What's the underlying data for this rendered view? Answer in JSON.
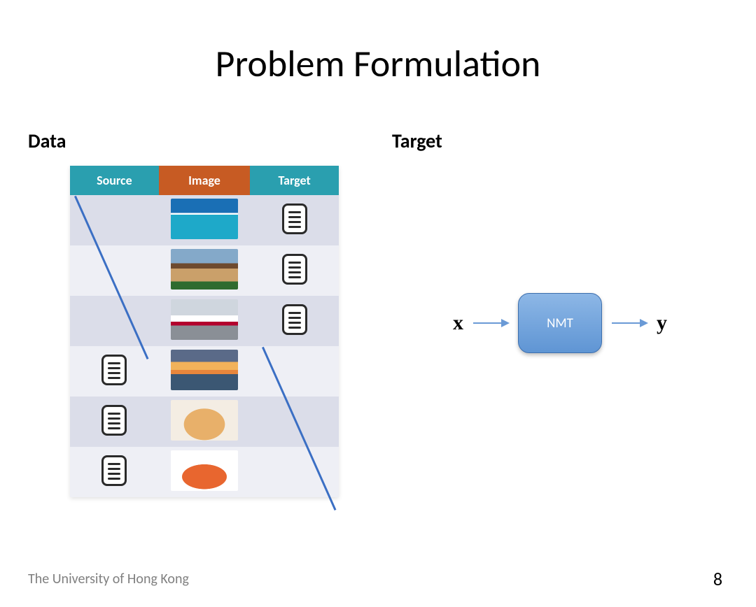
{
  "slide": {
    "title": "Problem Formulation",
    "footer": "The University of Hong Kong",
    "page_number": "8"
  },
  "sections": {
    "data_label": "Data",
    "target_label": "Target"
  },
  "table": {
    "headers": {
      "source": "Source",
      "image": "Image",
      "target": "Target"
    },
    "header_colors": {
      "source": "#2a9faf",
      "image": "#c75b23",
      "target": "#2a9faf"
    },
    "row_stripe_a": "#dbdde9",
    "row_stripe_b": "#eeeff5",
    "row_count": 6,
    "rows": [
      {
        "source_has_doc": false,
        "target_has_doc": true,
        "image_desc": "ocean-pier"
      },
      {
        "source_has_doc": false,
        "target_has_doc": true,
        "image_desc": "house"
      },
      {
        "source_has_doc": false,
        "target_has_doc": true,
        "image_desc": "train"
      },
      {
        "source_has_doc": true,
        "target_has_doc": false,
        "image_desc": "sunset-water"
      },
      {
        "source_has_doc": true,
        "target_has_doc": false,
        "image_desc": "kitten"
      },
      {
        "source_has_doc": true,
        "target_has_doc": false,
        "image_desc": "cartoon-shrimp"
      }
    ],
    "slash_color": "#3b6fc4"
  },
  "flow": {
    "input_label": "x",
    "box_label": "NMT",
    "output_label": "y",
    "arrow_color": "#6a9ad6",
    "box_gradient_top": "#8db7e6",
    "box_gradient_bottom": "#5f95d4",
    "box_border": "#3d6fae"
  }
}
